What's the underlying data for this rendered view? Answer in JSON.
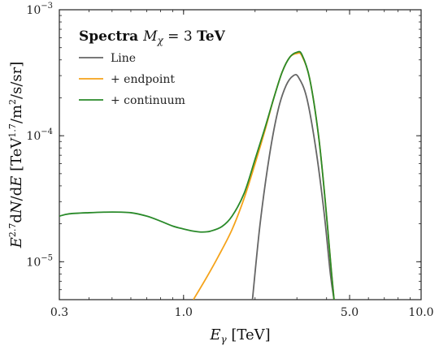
{
  "chart_data": {
    "type": "line",
    "title": "",
    "legend_title": "Spectra M_χ = 3 TeV",
    "legend_title_bold": "Spectra",
    "legend_title_math": "M",
    "legend_title_sub": "χ",
    "legend_title_value": "= 3 TeV",
    "xlabel": "E_γ [TeV]",
    "ylabel": "E^2.7 dN/dE [TeV^1.7/m^2/s/sr]",
    "xscale": "log",
    "yscale": "log",
    "xlim": [
      0.3,
      10.0
    ],
    "ylim": [
      5e-06,
      0.001
    ],
    "x_ticks": [
      {
        "value": 0.3,
        "label": "0.3"
      },
      {
        "value": 1.0,
        "label": "1.0"
      },
      {
        "value": 5.0,
        "label": "5.0"
      },
      {
        "value": 10.0,
        "label": "10.0"
      }
    ],
    "y_ticks": [
      {
        "value": 1e-05,
        "base": "10",
        "exp": "−5"
      },
      {
        "value": 0.0001,
        "base": "10",
        "exp": "−4"
      },
      {
        "value": 0.001,
        "base": "10",
        "exp": "−3"
      }
    ],
    "legend_position": "top-left",
    "grid": false,
    "series": [
      {
        "name": "Line",
        "color": "#666666",
        "points": [
          [
            1.95,
            5e-06
          ],
          [
            2.1,
            2e-05
          ],
          [
            2.3,
            7e-05
          ],
          [
            2.5,
            0.00016
          ],
          [
            2.7,
            0.00025
          ],
          [
            2.9,
            0.0003
          ],
          [
            3.05,
            0.00029
          ],
          [
            3.3,
            0.0002
          ],
          [
            3.6,
            8e-05
          ],
          [
            3.9,
            2.5e-05
          ],
          [
            4.15,
            8e-06
          ],
          [
            4.3,
            5e-06
          ]
        ]
      },
      {
        "name": "+ endpoint",
        "color": "#f5a31a",
        "points": [
          [
            1.1,
            5e-06
          ],
          [
            1.25,
            7.5e-06
          ],
          [
            1.4,
            1.1e-05
          ],
          [
            1.6,
            1.8e-05
          ],
          [
            1.8,
            3.2e-05
          ],
          [
            2.0,
            6e-05
          ],
          [
            2.2,
            0.00011
          ],
          [
            2.4,
            0.0002
          ],
          [
            2.6,
            0.00032
          ],
          [
            2.8,
            0.00042
          ],
          [
            3.0,
            0.00045
          ],
          [
            3.15,
            0.00043
          ],
          [
            3.4,
            0.00028
          ],
          [
            3.7,
            0.0001
          ],
          [
            3.95,
            3e-05
          ],
          [
            4.2,
            8e-06
          ],
          [
            4.3,
            5e-06
          ]
        ]
      },
      {
        "name": "+ continuum",
        "color": "#2a8a2a",
        "points": [
          [
            0.3,
            2.3e-05
          ],
          [
            0.33,
            2.4e-05
          ],
          [
            0.4,
            2.45e-05
          ],
          [
            0.5,
            2.48e-05
          ],
          [
            0.6,
            2.45e-05
          ],
          [
            0.7,
            2.3e-05
          ],
          [
            0.8,
            2.1e-05
          ],
          [
            0.9,
            1.92e-05
          ],
          [
            1.0,
            1.82e-05
          ],
          [
            1.1,
            1.75e-05
          ],
          [
            1.2,
            1.72e-05
          ],
          [
            1.3,
            1.75e-05
          ],
          [
            1.45,
            1.9e-05
          ],
          [
            1.6,
            2.3e-05
          ],
          [
            1.8,
            3.5e-05
          ],
          [
            2.0,
            6.5e-05
          ],
          [
            2.2,
            0.000115
          ],
          [
            2.4,
            0.0002
          ],
          [
            2.6,
            0.00032
          ],
          [
            2.8,
            0.00042
          ],
          [
            3.0,
            0.00046
          ],
          [
            3.15,
            0.00044
          ],
          [
            3.4,
            0.00028
          ],
          [
            3.7,
            0.0001
          ],
          [
            3.95,
            3e-05
          ],
          [
            4.2,
            8e-06
          ],
          [
            4.3,
            5e-06
          ]
        ]
      }
    ]
  }
}
